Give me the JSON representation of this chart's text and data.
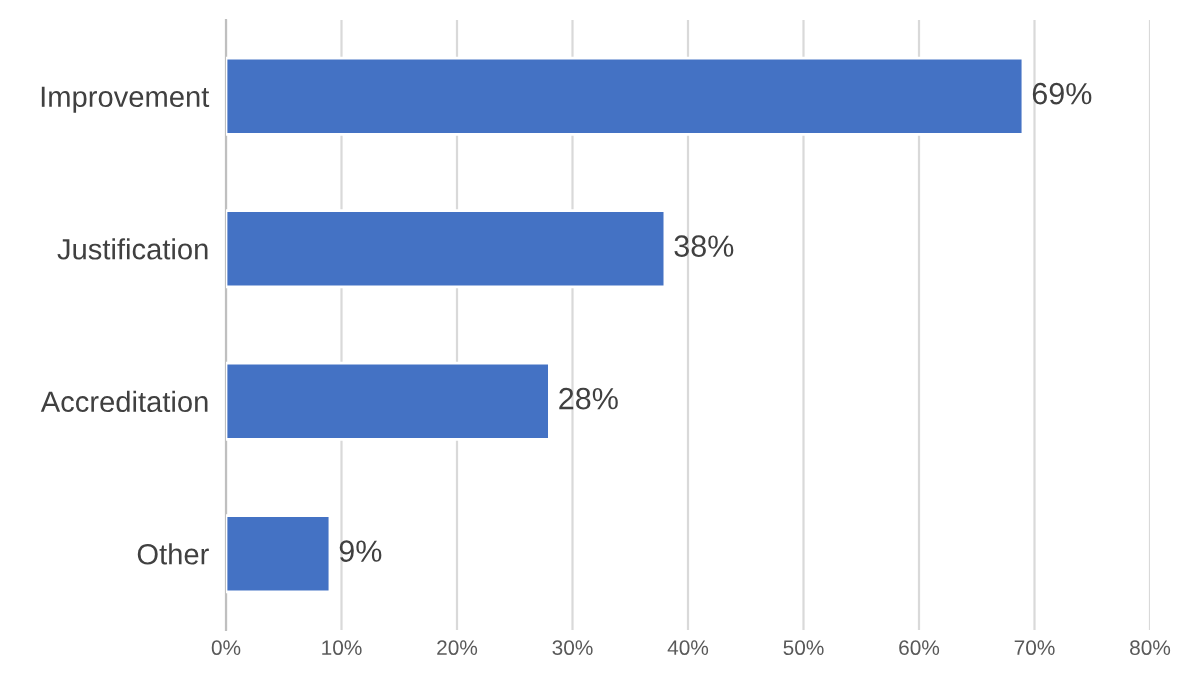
{
  "chart_data": {
    "type": "bar",
    "orientation": "horizontal",
    "categories": [
      "Improvement",
      "Justification",
      "Accreditation",
      "Other"
    ],
    "values": [
      69,
      38,
      28,
      9
    ],
    "value_labels": [
      "69%",
      "38%",
      "28%",
      "9%"
    ],
    "color": "#4472c4",
    "xlim": [
      0,
      80
    ],
    "xticks": [
      {
        "value": 0,
        "label": "0%"
      },
      {
        "value": 10,
        "label": "10%"
      },
      {
        "value": 20,
        "label": "20%"
      },
      {
        "value": 30,
        "label": "30%"
      },
      {
        "value": 40,
        "label": "40%"
      },
      {
        "value": 50,
        "label": "50%"
      },
      {
        "value": 60,
        "label": "60%"
      },
      {
        "value": 70,
        "label": "70%"
      },
      {
        "value": 80,
        "label": "80%"
      }
    ],
    "grid": "x"
  }
}
